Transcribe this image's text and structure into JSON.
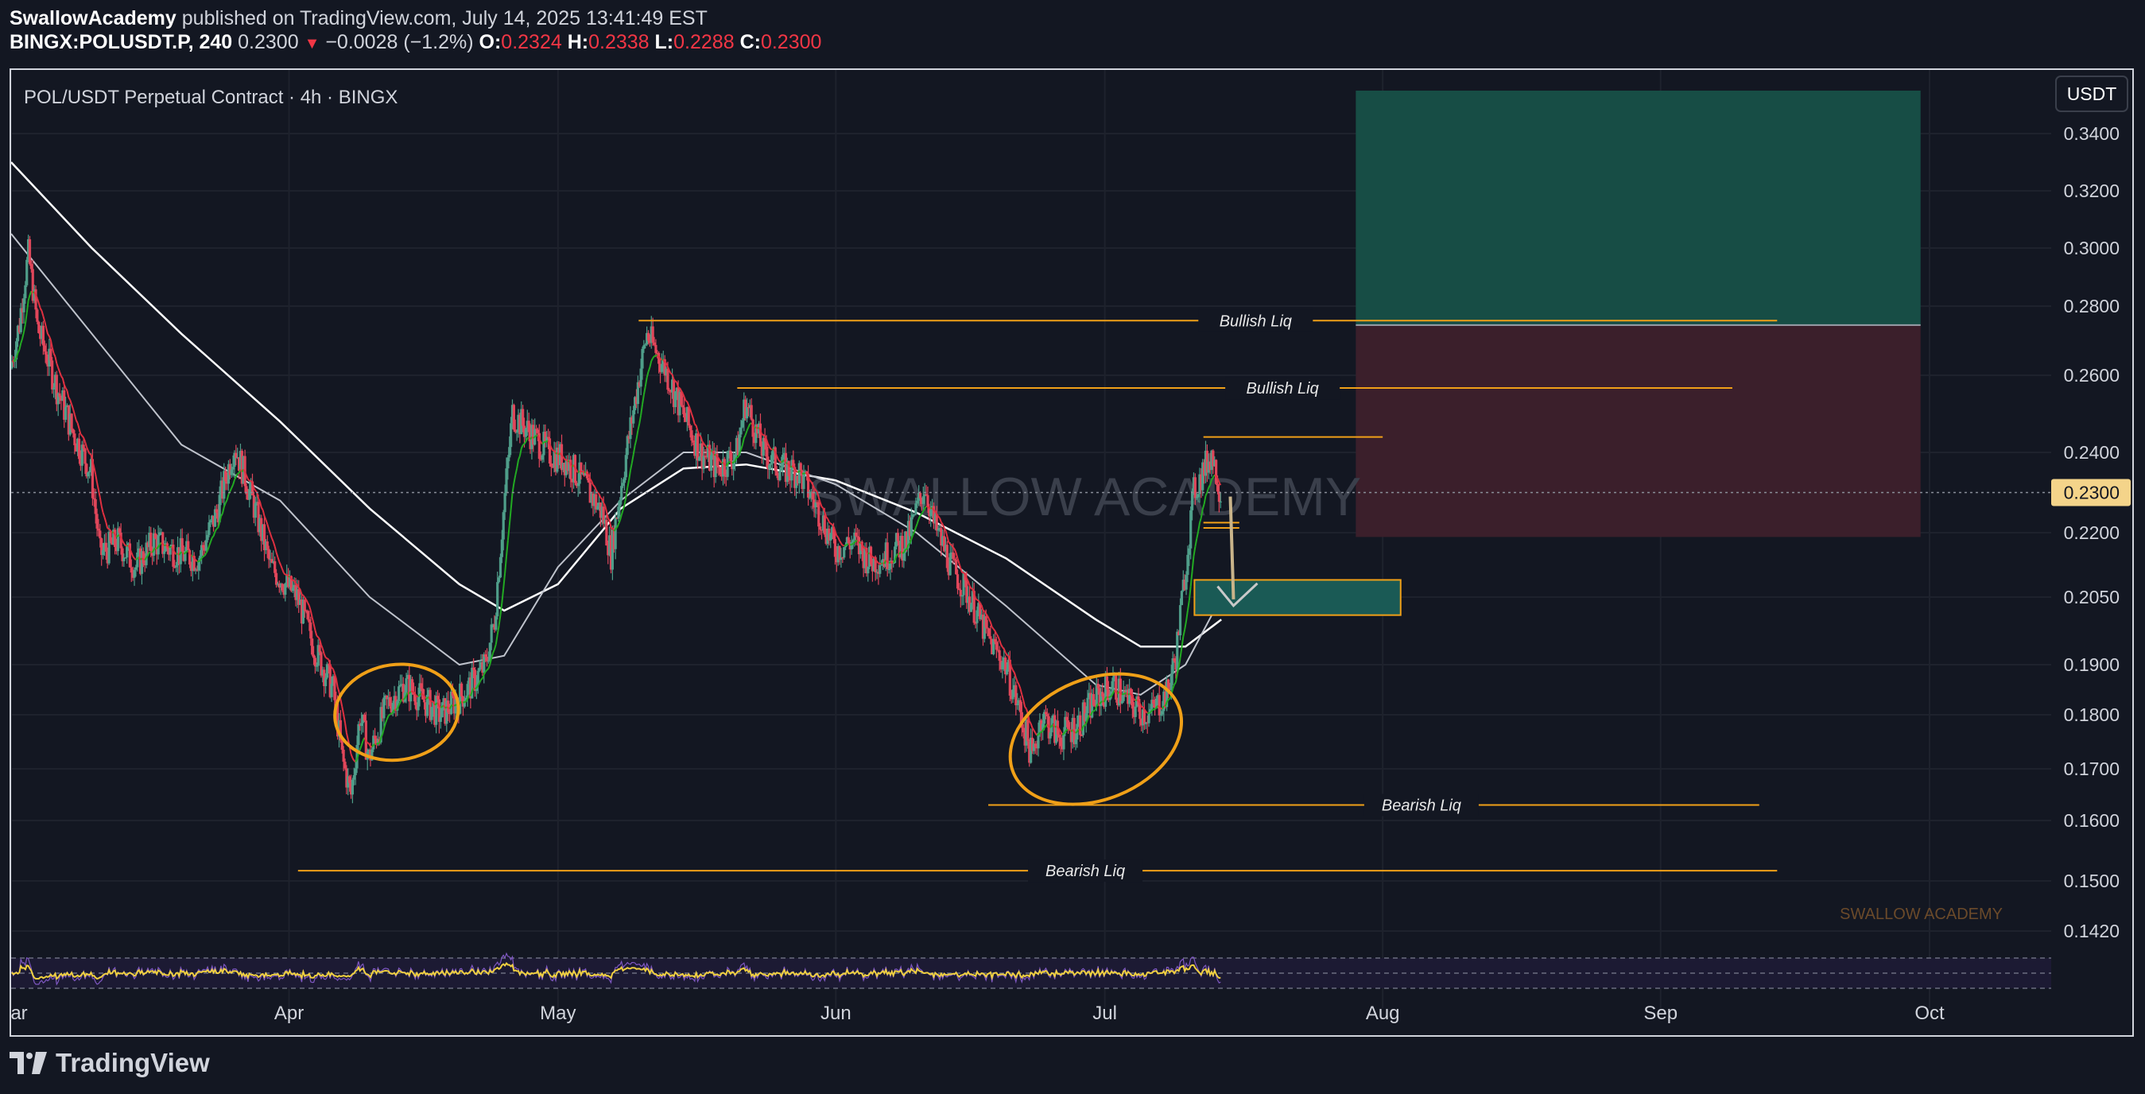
{
  "header": {
    "author": "SwallowAcademy",
    "published": "published on TradingView.com, July 14, 2025 13:41:49 EST",
    "symbol_line": "BINGX:POLUSDT.P, 240",
    "last": "0.2300",
    "change": "−0.0028 (−1.2%)",
    "o_label": "O:",
    "o_value": "0.2324",
    "h_label": "H:",
    "h_value": "0.2338",
    "l_label": "L:",
    "l_value": "0.2288",
    "c_label": "C:",
    "c_value": "0.2300"
  },
  "footer": {
    "brand": "TradingView"
  },
  "colors": {
    "background": "#131722",
    "grid": "#1e222d",
    "up_candle": "#4f9e8a",
    "down_candle": "#e0465a",
    "ema_white": "#ffffff",
    "ema_gray": "#bfc3cc",
    "ema_red": "#e03040",
    "ema_green": "#22aa22",
    "liq_line": "#f0a018",
    "target_zone": "#174d45",
    "stop_zone": "#3b1f2b",
    "entry_zone": "#1a5a55",
    "rsi": "#f0d040",
    "watermark": "#3a3f4b",
    "label_bg": "#f4d48a"
  },
  "chart_data": {
    "type": "candlestick",
    "title": "POL/USDT Perpetual Contract · 4h · BINGX",
    "quote_currency": "USDT",
    "current_price": "0.2300",
    "y_axis": {
      "ticks": [
        "0.3400",
        "0.3200",
        "0.3000",
        "0.2800",
        "0.2600",
        "0.2400",
        "0.2200",
        "0.2050",
        "0.1900",
        "0.1800",
        "0.1700",
        "0.1600",
        "0.1500",
        "0.1420"
      ],
      "values": [
        0.34,
        0.32,
        0.3,
        0.28,
        0.26,
        0.24,
        0.22,
        0.205,
        0.19,
        0.18,
        0.17,
        0.16,
        0.15,
        0.142
      ]
    },
    "x_axis": {
      "ticks": [
        "Mar",
        "Apr",
        "May",
        "Jun",
        "Jul",
        "Aug",
        "Sep",
        "Oct"
      ],
      "dates": [
        "2025-03-01",
        "2025-04-01",
        "2025-05-01",
        "2025-06-01",
        "2025-07-01",
        "2025-08-01",
        "2025-09-01",
        "2025-10-01"
      ]
    },
    "price_path": [
      [
        "2025-03-01",
        0.262
      ],
      [
        "2025-03-02",
        0.275
      ],
      [
        "2025-03-03",
        0.298
      ],
      [
        "2025-03-04",
        0.274
      ],
      [
        "2025-03-06",
        0.258
      ],
      [
        "2025-03-08",
        0.245
      ],
      [
        "2025-03-10",
        0.235
      ],
      [
        "2025-03-11",
        0.215
      ],
      [
        "2025-03-13",
        0.218
      ],
      [
        "2025-03-15",
        0.212
      ],
      [
        "2025-03-17",
        0.218
      ],
      [
        "2025-03-20",
        0.215
      ],
      [
        "2025-03-22",
        0.214
      ],
      [
        "2025-03-24",
        0.225
      ],
      [
        "2025-03-26",
        0.242
      ],
      [
        "2025-03-28",
        0.228
      ],
      [
        "2025-03-30",
        0.212
      ],
      [
        "2025-04-02",
        0.205
      ],
      [
        "2025-04-04",
        0.193
      ],
      [
        "2025-04-06",
        0.185
      ],
      [
        "2025-04-07",
        0.172
      ],
      [
        "2025-04-08",
        0.165
      ],
      [
        "2025-04-09",
        0.18
      ],
      [
        "2025-04-10",
        0.172
      ],
      [
        "2025-04-12",
        0.182
      ],
      [
        "2025-04-14",
        0.186
      ],
      [
        "2025-04-16",
        0.183
      ],
      [
        "2025-04-18",
        0.18
      ],
      [
        "2025-04-21",
        0.185
      ],
      [
        "2025-04-23",
        0.19
      ],
      [
        "2025-04-24",
        0.2
      ],
      [
        "2025-04-25",
        0.225
      ],
      [
        "2025-04-26",
        0.25
      ],
      [
        "2025-04-28",
        0.245
      ],
      [
        "2025-04-30",
        0.24
      ],
      [
        "2025-05-02",
        0.238
      ],
      [
        "2025-05-04",
        0.232
      ],
      [
        "2025-05-06",
        0.225
      ],
      [
        "2025-05-07",
        0.215
      ],
      [
        "2025-05-08",
        0.23
      ],
      [
        "2025-05-10",
        0.258
      ],
      [
        "2025-05-11",
        0.272
      ],
      [
        "2025-05-13",
        0.262
      ],
      [
        "2025-05-15",
        0.25
      ],
      [
        "2025-05-17",
        0.24
      ],
      [
        "2025-05-19",
        0.236
      ],
      [
        "2025-05-21",
        0.24
      ],
      [
        "2025-05-22",
        0.253
      ],
      [
        "2025-05-24",
        0.24
      ],
      [
        "2025-05-26",
        0.236
      ],
      [
        "2025-05-28",
        0.235
      ],
      [
        "2025-05-30",
        0.226
      ],
      [
        "2025-06-01",
        0.216
      ],
      [
        "2025-06-03",
        0.218
      ],
      [
        "2025-06-05",
        0.213
      ],
      [
        "2025-06-07",
        0.215
      ],
      [
        "2025-06-09",
        0.218
      ],
      [
        "2025-06-11",
        0.232
      ],
      [
        "2025-06-12",
        0.222
      ],
      [
        "2025-06-14",
        0.212
      ],
      [
        "2025-06-16",
        0.205
      ],
      [
        "2025-06-18",
        0.196
      ],
      [
        "2025-06-20",
        0.19
      ],
      [
        "2025-06-22",
        0.178
      ],
      [
        "2025-06-23",
        0.172
      ],
      [
        "2025-06-24",
        0.18
      ],
      [
        "2025-06-26",
        0.176
      ],
      [
        "2025-06-28",
        0.178
      ],
      [
        "2025-06-30",
        0.183
      ],
      [
        "2025-07-02",
        0.186
      ],
      [
        "2025-07-04",
        0.182
      ],
      [
        "2025-07-06",
        0.18
      ],
      [
        "2025-07-08",
        0.184
      ],
      [
        "2025-07-09",
        0.192
      ],
      [
        "2025-07-10",
        0.21
      ],
      [
        "2025-07-11",
        0.23
      ],
      [
        "2025-07-12",
        0.235
      ],
      [
        "2025-07-13",
        0.24
      ],
      [
        "2025-07-14",
        0.23
      ]
    ],
    "lines": {
      "ema_white": [
        [
          "2025-03-01",
          0.33
        ],
        [
          "2025-03-10",
          0.3
        ],
        [
          "2025-03-20",
          0.272
        ],
        [
          "2025-03-31",
          0.248
        ],
        [
          "2025-04-10",
          0.226
        ],
        [
          "2025-04-20",
          0.208
        ],
        [
          "2025-04-25",
          0.202
        ],
        [
          "2025-05-01",
          0.208
        ],
        [
          "2025-05-08",
          0.226
        ],
        [
          "2025-05-15",
          0.236
        ],
        [
          "2025-05-22",
          0.237
        ],
        [
          "2025-06-01",
          0.233
        ],
        [
          "2025-06-10",
          0.225
        ],
        [
          "2025-06-20",
          0.214
        ],
        [
          "2025-06-30",
          0.2
        ],
        [
          "2025-07-05",
          0.194
        ],
        [
          "2025-07-10",
          0.194
        ],
        [
          "2025-07-14",
          0.2
        ]
      ],
      "ema_gray": [
        [
          "2025-03-01",
          0.305
        ],
        [
          "2025-03-10",
          0.272
        ],
        [
          "2025-03-20",
          0.242
        ],
        [
          "2025-03-31",
          0.228
        ],
        [
          "2025-04-10",
          0.205
        ],
        [
          "2025-04-20",
          0.19
        ],
        [
          "2025-04-25",
          0.192
        ],
        [
          "2025-05-01",
          0.212
        ],
        [
          "2025-05-08",
          0.228
        ],
        [
          "2025-05-15",
          0.24
        ],
        [
          "2025-05-22",
          0.24
        ],
        [
          "2025-06-01",
          0.232
        ],
        [
          "2025-06-10",
          0.22
        ],
        [
          "2025-06-20",
          0.203
        ],
        [
          "2025-06-30",
          0.186
        ],
        [
          "2025-07-05",
          0.184
        ],
        [
          "2025-07-10",
          0.19
        ],
        [
          "2025-07-14",
          0.205
        ]
      ]
    },
    "annotations": [
      {
        "text": "Bullish Liq",
        "price": 0.2758,
        "from": "2025-05-10",
        "to": "2025-09-14"
      },
      {
        "text": "Bullish Liq",
        "price": 0.2567,
        "from": "2025-05-21",
        "to": "2025-09-09"
      },
      {
        "text": "",
        "price": 0.244,
        "from": "2025-07-12",
        "to": "2025-08-01"
      },
      {
        "text": "Bearish Liq",
        "price": 0.163,
        "from": "2025-06-18",
        "to": "2025-09-12"
      },
      {
        "text": "Bearish Liq",
        "price": 0.1517,
        "from": "2025-04-02",
        "to": "2025-09-14"
      }
    ],
    "zones": {
      "target": {
        "top": 0.355,
        "bottom": 0.2745,
        "from": "2025-07-29",
        "to": "2025-09-30"
      },
      "stop": {
        "top": 0.2745,
        "bottom": 0.219,
        "from": "2025-07-29",
        "to": "2025-09-30"
      },
      "entry": {
        "top": 0.209,
        "bottom": 0.201,
        "from": "2025-07-11",
        "to": "2025-08-03"
      }
    },
    "watermark": "SWALLOW ACADEMY",
    "signature": "SWALLOW ACADEMY"
  }
}
